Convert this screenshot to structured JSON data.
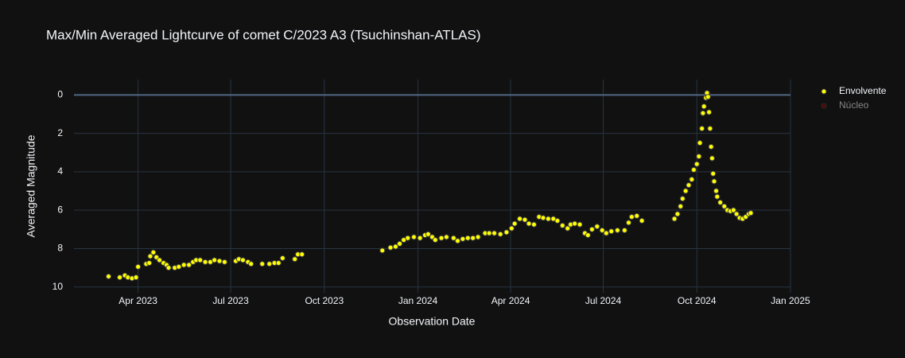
{
  "chart_data": {
    "type": "scatter",
    "title": "Max/Min Averaged Lightcurve of comet C/2023 A3 (Tsuchinshan-ATLAS)",
    "x_label": "Observation Date",
    "y_label": "Averaged Magnitude",
    "xlim": [
      "2023-01-28",
      "2025-01-01"
    ],
    "xticks": [
      {
        "value": "2023-04-01",
        "label": "Apr 2023"
      },
      {
        "value": "2023-07-01",
        "label": "Jul 2023"
      },
      {
        "value": "2023-10-01",
        "label": "Oct 2023"
      },
      {
        "value": "2024-01-01",
        "label": "Jan 2024"
      },
      {
        "value": "2024-04-01",
        "label": "Apr 2024"
      },
      {
        "value": "2024-07-01",
        "label": "Jul 2024"
      },
      {
        "value": "2024-10-01",
        "label": "Oct 2024"
      },
      {
        "value": "2025-01-01",
        "label": "Jan 2025"
      }
    ],
    "ylim": [
      -0.8,
      10.3
    ],
    "y_reversed": true,
    "yticks": [
      0,
      2,
      4,
      6,
      8,
      10
    ],
    "grid": true,
    "legend": "right",
    "series": [
      {
        "name": "Envolvente",
        "color": "#ffff00",
        "visible": true,
        "x": [
          "2023-03-03",
          "2023-03-14",
          "2023-03-19",
          "2023-03-22",
          "2023-03-26",
          "2023-03-30",
          "2023-04-01",
          "2023-04-09",
          "2023-04-12",
          "2023-04-13",
          "2023-04-16",
          "2023-04-19",
          "2023-04-22",
          "2023-04-26",
          "2023-04-29",
          "2023-05-01",
          "2023-05-07",
          "2023-05-11",
          "2023-05-16",
          "2023-05-21",
          "2023-05-25",
          "2023-05-28",
          "2023-06-01",
          "2023-06-06",
          "2023-06-11",
          "2023-06-15",
          "2023-06-20",
          "2023-06-25",
          "2023-07-06",
          "2023-07-09",
          "2023-07-13",
          "2023-07-18",
          "2023-07-21",
          "2023-08-01",
          "2023-08-08",
          "2023-08-13",
          "2023-08-17",
          "2023-08-21",
          "2023-09-02",
          "2023-09-05",
          "2023-09-09",
          "2023-11-27",
          "2023-12-05",
          "2023-12-10",
          "2023-12-14",
          "2023-12-18",
          "2023-12-22",
          "2023-12-28",
          "2024-01-03",
          "2024-01-08",
          "2024-01-11",
          "2024-01-15",
          "2024-01-18",
          "2024-01-24",
          "2024-01-29",
          "2024-02-05",
          "2024-02-09",
          "2024-02-14",
          "2024-02-19",
          "2024-02-24",
          "2024-02-29",
          "2024-03-07",
          "2024-03-11",
          "2024-03-16",
          "2024-03-22",
          "2024-03-28",
          "2024-04-02",
          "2024-04-05",
          "2024-04-10",
          "2024-04-15",
          "2024-04-19",
          "2024-04-24",
          "2024-04-29",
          "2024-05-03",
          "2024-05-08",
          "2024-05-13",
          "2024-05-17",
          "2024-05-22",
          "2024-05-27",
          "2024-05-30",
          "2024-06-03",
          "2024-06-08",
          "2024-06-13",
          "2024-06-16",
          "2024-06-20",
          "2024-06-25",
          "2024-06-30",
          "2024-07-04",
          "2024-07-09",
          "2024-07-15",
          "2024-07-22",
          "2024-07-26",
          "2024-07-29",
          "2024-08-03",
          "2024-08-08",
          "2024-09-09",
          "2024-09-12",
          "2024-09-15",
          "2024-09-17",
          "2024-09-20",
          "2024-09-23",
          "2024-09-26",
          "2024-09-28",
          "2024-10-01",
          "2024-10-03",
          "2024-10-04",
          "2024-10-06",
          "2024-10-07",
          "2024-10-08",
          "2024-10-10",
          "2024-10-11",
          "2024-10-12",
          "2024-10-13",
          "2024-10-14",
          "2024-10-15",
          "2024-10-16",
          "2024-10-17",
          "2024-10-18",
          "2024-10-20",
          "2024-10-21",
          "2024-10-24",
          "2024-10-28",
          "2024-10-31",
          "2024-11-03",
          "2024-11-06",
          "2024-11-09",
          "2024-11-12",
          "2024-11-15",
          "2024-11-18",
          "2024-11-21",
          "2024-11-23"
        ],
        "values": [
          9.45,
          9.5,
          9.4,
          9.5,
          9.55,
          9.5,
          8.95,
          8.8,
          8.75,
          8.4,
          8.2,
          8.45,
          8.6,
          8.75,
          8.85,
          9.0,
          9.0,
          8.95,
          8.85,
          8.85,
          8.7,
          8.6,
          8.6,
          8.7,
          8.7,
          8.6,
          8.65,
          8.7,
          8.65,
          8.55,
          8.6,
          8.7,
          8.8,
          8.8,
          8.8,
          8.75,
          8.75,
          8.5,
          8.55,
          8.3,
          8.3,
          8.1,
          7.95,
          7.9,
          7.75,
          7.55,
          7.45,
          7.4,
          7.45,
          7.3,
          7.25,
          7.4,
          7.55,
          7.45,
          7.4,
          7.45,
          7.6,
          7.5,
          7.45,
          7.45,
          7.4,
          7.2,
          7.2,
          7.2,
          7.25,
          7.15,
          6.95,
          6.7,
          6.45,
          6.5,
          6.7,
          6.75,
          6.35,
          6.4,
          6.45,
          6.45,
          6.55,
          6.8,
          6.95,
          6.75,
          6.7,
          6.75,
          7.2,
          7.3,
          7.0,
          6.85,
          7.05,
          7.2,
          7.1,
          7.05,
          7.05,
          6.65,
          6.35,
          6.3,
          6.55,
          6.45,
          6.2,
          5.8,
          5.4,
          5.0,
          4.7,
          4.4,
          3.9,
          3.6,
          3.2,
          2.5,
          1.75,
          0.95,
          0.6,
          0.15,
          -0.1,
          0.1,
          0.9,
          1.75,
          2.7,
          3.3,
          4.1,
          4.5,
          5.0,
          5.3,
          5.6,
          5.8,
          6.0,
          6.05,
          6.0,
          6.2,
          6.4,
          6.45,
          6.35,
          6.2,
          6.15
        ]
      },
      {
        "name": "Núcleo",
        "color": "#8b0000",
        "visible": "legendonly",
        "x": [],
        "values": []
      }
    ]
  }
}
